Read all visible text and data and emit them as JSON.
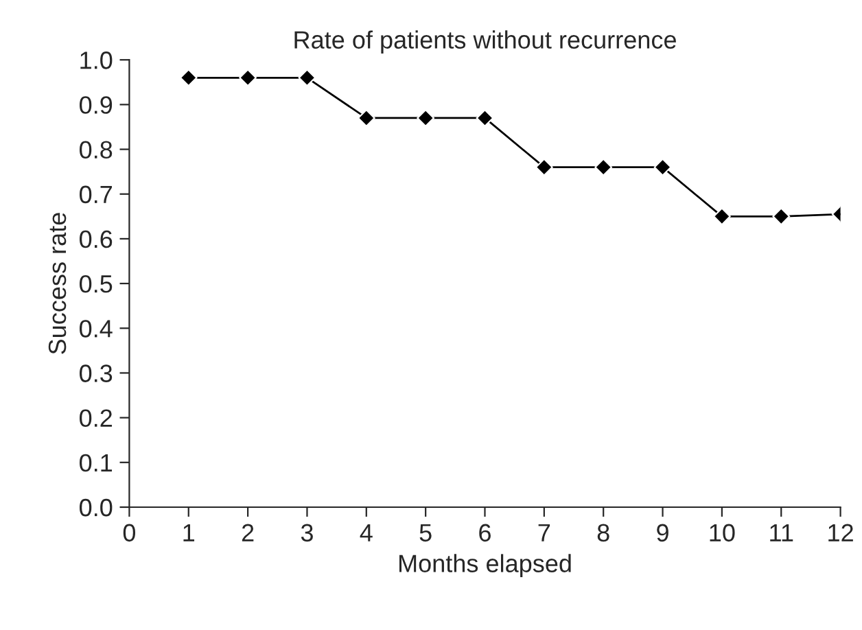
{
  "chart_data": {
    "type": "line",
    "title": "Rate of patients without recurrence",
    "xlabel": "Months elapsed",
    "ylabel": "Success rate",
    "x": [
      1,
      2,
      3,
      4,
      5,
      6,
      7,
      8,
      9,
      10,
      11,
      12
    ],
    "series": [
      {
        "color": "#000000",
        "values": [
          0.96,
          0.96,
          0.96,
          0.87,
          0.87,
          0.87,
          0.76,
          0.76,
          0.76,
          0.65,
          0.65,
          0.655
        ]
      }
    ],
    "xlim": [
      0,
      12
    ],
    "xticks": [
      0,
      1,
      2,
      3,
      4,
      5,
      6,
      7,
      8,
      9,
      10,
      11,
      12
    ],
    "ylim": [
      0,
      1
    ],
    "yticks": [
      {
        "value": 0,
        "label": "0.0"
      },
      0.1,
      0.2,
      0.3,
      0.4,
      0.5,
      0.6,
      0.7,
      0.8,
      0.9,
      {
        "value": 1,
        "label": "1.0"
      }
    ],
    "grid": false,
    "legend": false,
    "marker": "diamond",
    "line_style": "solid"
  }
}
